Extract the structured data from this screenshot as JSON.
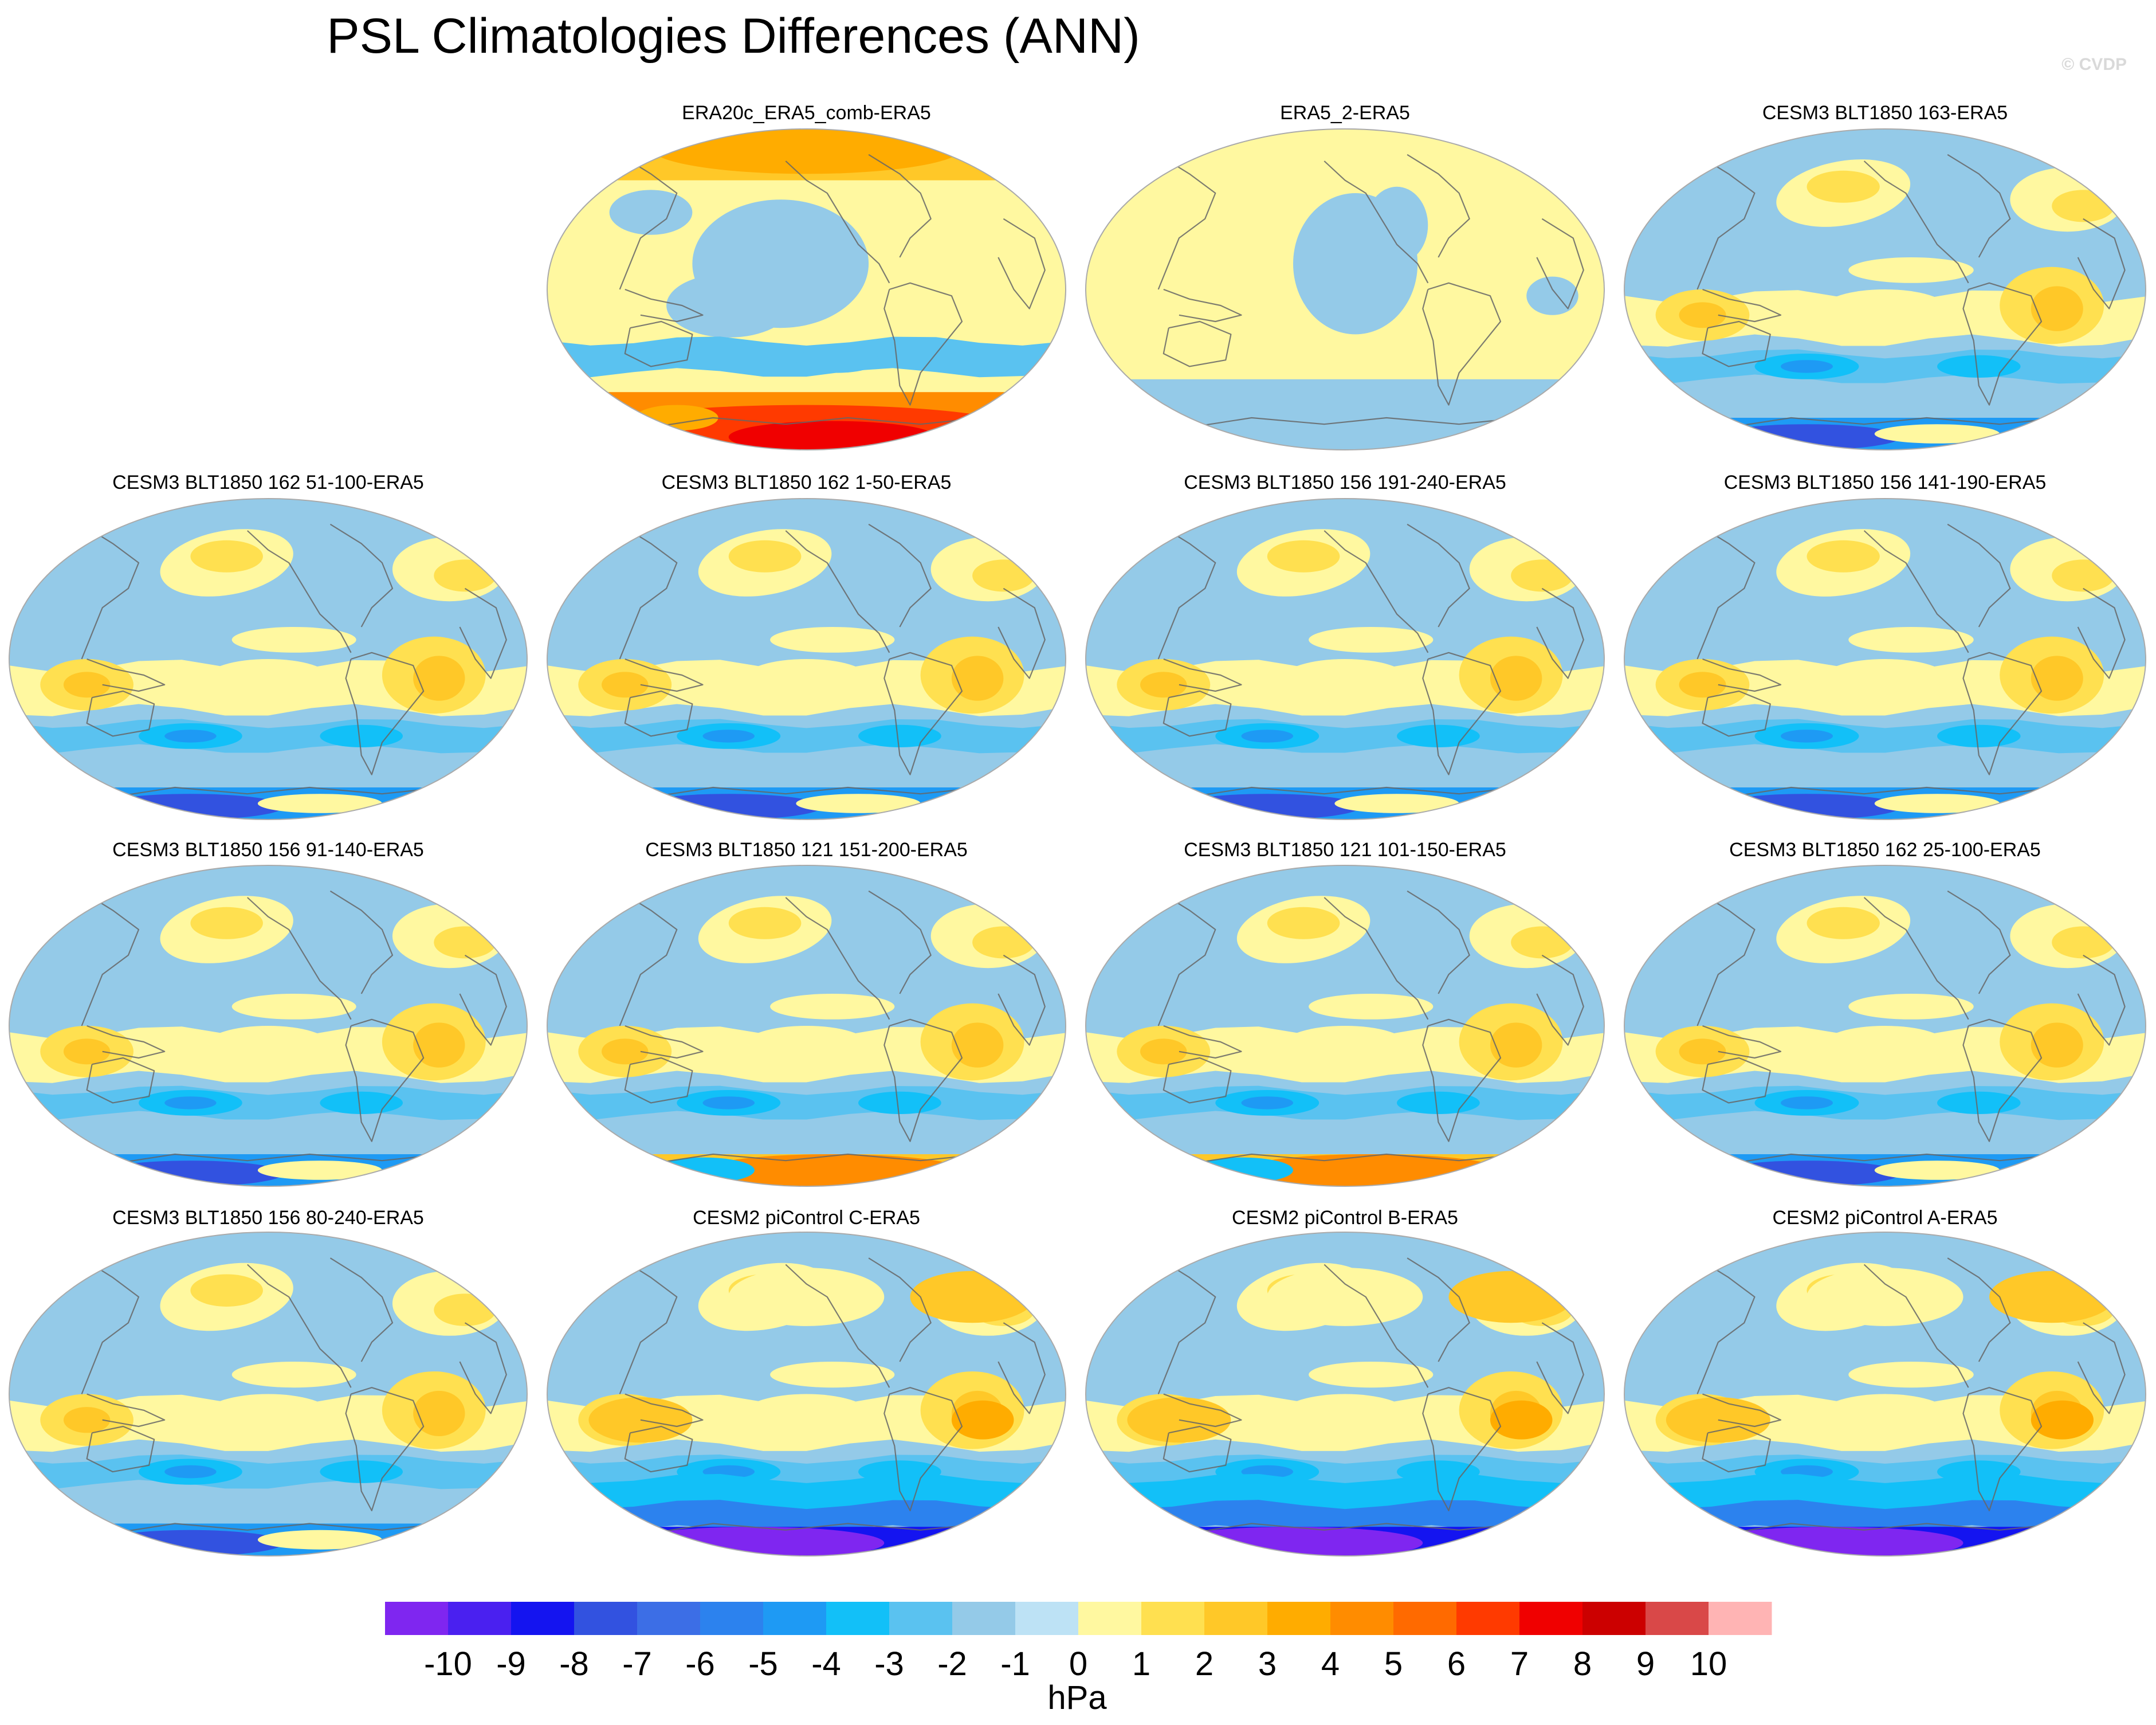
{
  "title": "PSL Climatologies Differences (ANN)",
  "credit": "© CVDP",
  "colorbar": {
    "units": "hPa",
    "tick_labels": [
      "-10",
      "-9",
      "-8",
      "-7",
      "-6",
      "-5",
      "-4",
      "-3",
      "-2",
      "-1",
      "0",
      "1",
      "2",
      "3",
      "4",
      "5",
      "6",
      "7",
      "8",
      "9",
      "10"
    ],
    "colors": [
      "#7f26f0",
      "#4a20f0",
      "#1414f0",
      "#3252e0",
      "#3c6ee6",
      "#2c82ee",
      "#1e9af4",
      "#12c0f8",
      "#5ac2f0",
      "#94cae8",
      "#bde2f5",
      "#fff8a0",
      "#ffe050",
      "#ffc828",
      "#ffac00",
      "#ff8c00",
      "#ff6a00",
      "#ff3a00",
      "#f00000",
      "#cc0000",
      "#d94848",
      "#ffb4b4"
    ]
  },
  "panels": [
    {
      "title": "ERA20c_ERA5_comb-ERA5",
      "pattern": "era20c"
    },
    {
      "title": "ERA5_2-ERA5",
      "pattern": "era5"
    },
    {
      "title": "CESM3 BLT1850 163-ERA5",
      "pattern": "cesm3"
    },
    {
      "title": "CESM3 BLT1850 162 51-100-ERA5",
      "pattern": "cesm3"
    },
    {
      "title": "CESM3 BLT1850 162 1-50-ERA5",
      "pattern": "cesm3"
    },
    {
      "title": "CESM3 BLT1850 156 191-240-ERA5",
      "pattern": "cesm3"
    },
    {
      "title": "CESM3 BLT1850 156 141-190-ERA5",
      "pattern": "cesm3"
    },
    {
      "title": "CESM3 BLT1850 156 91-140-ERA5",
      "pattern": "cesm3"
    },
    {
      "title": "CESM3 BLT1850 121 151-200-ERA5",
      "pattern": "cesm3warm"
    },
    {
      "title": "CESM3 BLT1850 121 101-150-ERA5",
      "pattern": "cesm3warm"
    },
    {
      "title": "CESM3 BLT1850 162 25-100-ERA5",
      "pattern": "cesm3"
    },
    {
      "title": "CESM3 BLT1850 156 80-240-ERA5",
      "pattern": "cesm3"
    },
    {
      "title": "CESM2 piControl C-ERA5",
      "pattern": "cesm2"
    },
    {
      "title": "CESM2 piControl B-ERA5",
      "pattern": "cesm2"
    },
    {
      "title": "CESM2 piControl A-ERA5",
      "pattern": "cesm2"
    }
  ]
}
